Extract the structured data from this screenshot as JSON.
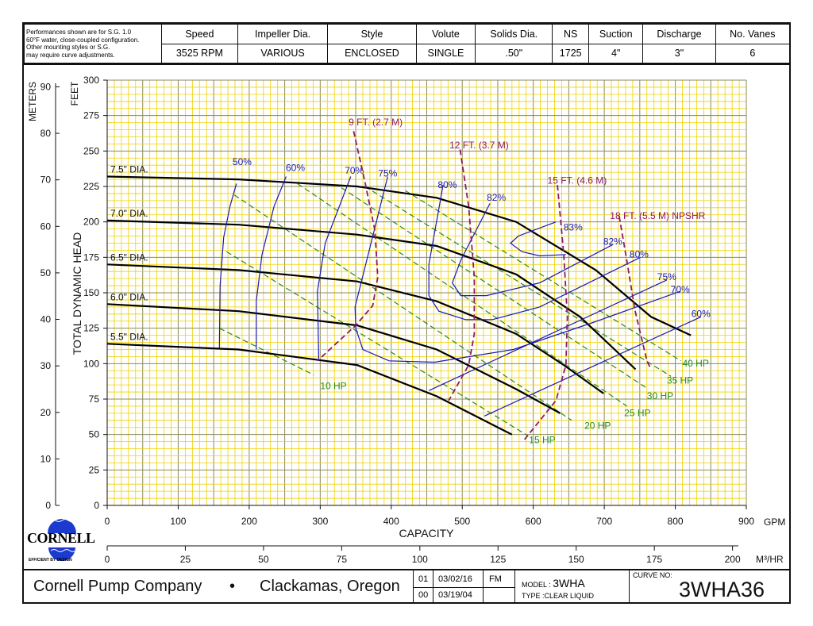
{
  "header": {
    "note": [
      "Performances shown are for S.G. 1.0",
      "60°F water, close-coupled configuration.",
      "Other mounting styles or S.G.",
      "may require curve adjustments."
    ],
    "columns": [
      "Speed",
      "Impeller Dia.",
      "Style",
      "Volute",
      "Solids Dia.",
      "NS",
      "Suction",
      "Discharge",
      "No. Vanes"
    ],
    "values": [
      "3525 RPM",
      "VARIOUS",
      "ENCLOSED",
      "SINGLE",
      ".50\"",
      "1725",
      "4\"",
      "3\"",
      "6"
    ]
  },
  "logo": {
    "name": "CORNELL",
    "tagline": "EFFICIENT BY DESIGN"
  },
  "footer": {
    "company": "Cornell Pump Company",
    "bullet": "•",
    "location": "Clackamas, Oregon",
    "revisions": [
      {
        "rev": "01",
        "date": "03/02/16",
        "by": "FM"
      },
      {
        "rev": "00",
        "date": "03/19/04",
        "by": ""
      }
    ],
    "model_label": "MODEL :",
    "model": "3WHA",
    "type_label": "TYPE :",
    "type": "CLEAR LIQUID",
    "curve_label": "CURVE NO:",
    "curve_no": "3WHA36"
  },
  "chart_data": {
    "type": "line",
    "xlabel": "CAPACITY",
    "xunit": "GPM",
    "x2unit": "M³/HR",
    "ylabel": "TOTAL DYNAMIC HEAD",
    "yunit": "FEET",
    "y2unit": "METERS",
    "xlim": [
      0,
      900
    ],
    "ylim": [
      0,
      300
    ],
    "xticks": [
      0,
      100,
      200,
      300,
      400,
      500,
      600,
      700,
      800,
      900
    ],
    "yticks": [
      0,
      25,
      50,
      75,
      100,
      125,
      150,
      175,
      200,
      225,
      250,
      275,
      300
    ],
    "x2ticks": [
      0,
      25,
      50,
      75,
      100,
      125,
      150,
      175,
      200
    ],
    "y2ticks": [
      0,
      10,
      20,
      30,
      40,
      50,
      60,
      70,
      80,
      90
    ],
    "grid": true,
    "head_curves": [
      {
        "name": "7.5\" DIA.",
        "points": [
          [
            0,
            232
          ],
          [
            185,
            230
          ],
          [
            352,
            225
          ],
          [
            464,
            217
          ],
          [
            576,
            200
          ],
          [
            688,
            166
          ],
          [
            766,
            133
          ],
          [
            822,
            120
          ]
        ]
      },
      {
        "name": "7.0\" DIA.",
        "points": [
          [
            0,
            201
          ],
          [
            185,
            198
          ],
          [
            352,
            191
          ],
          [
            464,
            183
          ],
          [
            576,
            163
          ],
          [
            666,
            133
          ],
          [
            744,
            96
          ]
        ]
      },
      {
        "name": "6.5\" DIA.",
        "points": [
          [
            0,
            170
          ],
          [
            185,
            166
          ],
          [
            352,
            158
          ],
          [
            464,
            144
          ],
          [
            576,
            121
          ],
          [
            643,
            99
          ],
          [
            699,
            79
          ]
        ]
      },
      {
        "name": "6.0\" DIA.",
        "points": [
          [
            0,
            142
          ],
          [
            185,
            137
          ],
          [
            352,
            127
          ],
          [
            464,
            110
          ],
          [
            576,
            82
          ],
          [
            638,
            65
          ]
        ]
      },
      {
        "name": "5.5\" DIA.",
        "points": [
          [
            0,
            114
          ],
          [
            185,
            110
          ],
          [
            352,
            99
          ],
          [
            464,
            77
          ],
          [
            570,
            50
          ]
        ]
      }
    ],
    "efficiency_curves": [
      {
        "name": "50%",
        "label_at": [
          190,
          240
        ],
        "points": [
          [
            182,
            227
          ],
          [
            173,
            211
          ],
          [
            164,
            189
          ],
          [
            159,
            155
          ],
          [
            158,
            111
          ]
        ]
      },
      {
        "name": "60%",
        "label_at": [
          265,
          236
        ],
        "points": [
          [
            252,
            232
          ],
          [
            235,
            211
          ],
          [
            218,
            177
          ],
          [
            210,
            144
          ],
          [
            210,
            110
          ]
        ]
      },
      {
        "name": "70%",
        "label_at": [
          348,
          234
        ],
        "points": [
          [
            343,
            232
          ],
          [
            307,
            185
          ],
          [
            296,
            151
          ],
          [
            298,
            102
          ]
        ]
      },
      {
        "name": "75%",
        "label_at": [
          395,
          232
        ],
        "points": [
          [
            395,
            232
          ],
          [
            349,
            140
          ],
          [
            350,
            125
          ],
          [
            360,
            110
          ],
          [
            397,
            102
          ],
          [
            461,
            101
          ],
          [
            572,
            110
          ],
          [
            684,
            129
          ],
          [
            807,
            151
          ]
        ]
      },
      {
        "name": "80%",
        "label_at": [
          479,
          224
        ],
        "points": [
          [
            473,
            226
          ],
          [
            453,
            170
          ],
          [
            453,
            148
          ],
          [
            467,
            137
          ],
          [
            505,
            131
          ],
          [
            542,
            131
          ],
          [
            609,
            140
          ],
          [
            751,
            175
          ]
        ]
      },
      {
        "name": "82%",
        "label_at": [
          548,
          215
        ],
        "points": [
          [
            539,
            213
          ],
          [
            498,
            173
          ],
          [
            486,
            157
          ],
          [
            498,
            148
          ],
          [
            534,
            148
          ],
          [
            609,
            157
          ],
          [
            712,
            184
          ]
        ]
      },
      {
        "name": "83%",
        "label_at": [
          656,
          194
        ],
        "points": [
          [
            632,
            200
          ],
          [
            579,
            190
          ],
          [
            568,
            185
          ],
          [
            584,
            179
          ],
          [
            609,
            176
          ],
          [
            646,
            177
          ]
        ]
      },
      {
        "name": "82%",
        "label_at": [
          712,
          184
        ],
        "points": []
      },
      {
        "name": "80%",
        "label_at": [
          749,
          175
        ],
        "points": []
      },
      {
        "name": "75%",
        "label_at": [
          788,
          159
        ],
        "points": [
          [
            453,
            81
          ],
          [
            788,
            159
          ]
        ]
      },
      {
        "name": "70%",
        "label_at": [
          807,
          150
        ],
        "points": []
      },
      {
        "name": "60%",
        "label_at": [
          836,
          133
        ],
        "points": [
          [
            531,
            63
          ],
          [
            836,
            133
          ]
        ]
      }
    ],
    "npshr_curves": [
      {
        "name": "9 FT. (2.7 M)",
        "label_at": [
          340,
          268
        ],
        "points": [
          [
            347,
            264
          ],
          [
            363,
            228
          ],
          [
            377,
            194
          ],
          [
            381,
            161
          ],
          [
            374,
            141
          ],
          [
            350,
            127
          ],
          [
            296,
            102
          ]
        ]
      },
      {
        "name": "12 FT. (3.7 M)",
        "label_at": [
          482,
          252
        ],
        "points": [
          [
            497,
            251
          ],
          [
            509,
            211
          ],
          [
            517,
            161
          ],
          [
            517,
            121
          ],
          [
            509,
            99
          ],
          [
            481,
            74
          ]
        ]
      },
      {
        "name": "15 FT. (4.6 M)",
        "label_at": [
          620,
          227
        ],
        "points": [
          [
            634,
            226
          ],
          [
            643,
            177
          ],
          [
            648,
            133
          ],
          [
            646,
            99
          ],
          [
            632,
            74
          ],
          [
            587,
            46
          ]
        ]
      },
      {
        "name": "18 FT. (5.5 M) NPSHR",
        "label_at": [
          708,
          202
        ],
        "points": [
          [
            721,
            204
          ],
          [
            732,
            172
          ],
          [
            743,
            138
          ],
          [
            760,
            102
          ],
          [
            766,
            96
          ]
        ]
      }
    ],
    "hp_lines": [
      {
        "name": "10 HP",
        "label_at": [
          300,
          82
        ],
        "points": [
          [
            158,
            125
          ],
          [
            291,
            92
          ]
        ]
      },
      {
        "name": "15 HP",
        "label_at": [
          594,
          44
        ],
        "points": [
          [
            168,
            179
          ],
          [
            593,
            49
          ]
        ]
      },
      {
        "name": "20 HP",
        "label_at": [
          672,
          54
        ],
        "points": [
          [
            179,
            219
          ],
          [
            654,
            60
          ]
        ]
      },
      {
        "name": "25 HP",
        "label_at": [
          728,
          63
        ],
        "points": [
          [
            268,
            227
          ],
          [
            732,
            70
          ]
        ]
      },
      {
        "name": "30 HP",
        "label_at": [
          760,
          75
        ],
        "points": [
          [
            330,
            224
          ],
          [
            762,
            82
          ]
        ]
      },
      {
        "name": "35 HP",
        "label_at": [
          788,
          86
        ],
        "points": [
          [
            363,
            225
          ],
          [
            794,
            91
          ]
        ]
      },
      {
        "name": "40 HP",
        "label_at": [
          810,
          98
        ],
        "points": [
          [
            420,
            222
          ],
          [
            808,
            102
          ]
        ]
      }
    ],
    "colors": {
      "head": "#000000",
      "efficiency": "#1a1ab4",
      "npshr": "#8a1a6a",
      "hp": "#2a8a1a",
      "grid_minor": "#f0d000",
      "grid_major": "#8c8a5a"
    }
  }
}
